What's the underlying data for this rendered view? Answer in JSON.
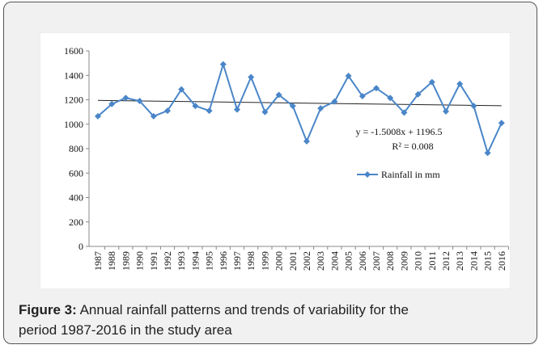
{
  "chart_data": {
    "type": "line",
    "categories": [
      "1987",
      "1988",
      "1989",
      "1990",
      "1991",
      "1992",
      "1993",
      "1994",
      "1995",
      "1996",
      "1997",
      "1998",
      "1999",
      "2000",
      "2001",
      "2002",
      "2003",
      "2004",
      "2005",
      "2006",
      "2007",
      "2008",
      "2009",
      "2010",
      "2011",
      "2012",
      "2013",
      "2014",
      "2015",
      "2016"
    ],
    "series": [
      {
        "name": "Rainfall in mm",
        "color": "#4a86c8",
        "values": [
          1065,
          1165,
          1215,
          1190,
          1065,
          1110,
          1285,
          1150,
          1110,
          1490,
          1120,
          1385,
          1100,
          1240,
          1150,
          860,
          1130,
          1185,
          1395,
          1230,
          1295,
          1215,
          1095,
          1245,
          1345,
          1105,
          1330,
          1150,
          765,
          1010
        ]
      }
    ],
    "ylim": [
      0,
      1600
    ],
    "yticks": [
      0,
      200,
      400,
      600,
      800,
      1000,
      1200,
      1400,
      1600
    ],
    "trendline": {
      "label": "y = -1.5008x + 1196.5",
      "slope": -1.5008,
      "intercept": 1196.5,
      "r2_label": "R² = 0.008"
    }
  },
  "caption": {
    "label": "Figure 3:",
    "lines": [
      "Annual rainfall patterns and trends of variability for the",
      "period 1987-2016 in the study area"
    ]
  }
}
